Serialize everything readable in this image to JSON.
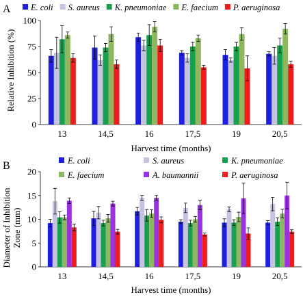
{
  "chart_data": [
    {
      "type": "bar",
      "panel_label": "A",
      "categories": [
        "13",
        "14,5",
        "16",
        "17,5",
        "19",
        "20,5"
      ],
      "xlabel": "Harvest time (months)",
      "ylabel": "Relative Inhibition (%)",
      "ylim": [
        0,
        100
      ],
      "yticks": [
        "0",
        "25",
        "50",
        "75",
        "100"
      ],
      "legend_position": "top",
      "series": [
        {
          "name": "E. coli",
          "color": "#1f1fe0",
          "values": [
            66,
            74,
            84,
            69,
            67,
            68
          ],
          "errors": [
            6,
            11,
            4,
            2,
            5,
            2
          ]
        },
        {
          "name": "S. aureus",
          "color": "#c5c3e0",
          "values": [
            69,
            62,
            76,
            64,
            62,
            66
          ],
          "errors": [
            15,
            5,
            5,
            4,
            2,
            8
          ]
        },
        {
          "name": "K. pneumoniae",
          "color": "#18a050",
          "values": [
            82,
            74,
            86,
            75,
            75,
            76
          ],
          "errors": [
            13,
            4,
            10,
            4,
            4,
            7
          ]
        },
        {
          "name": "E. faecium",
          "color": "#8db860",
          "values": [
            86,
            87,
            94,
            83,
            87,
            92
          ],
          "errors": [
            3,
            7,
            5,
            3,
            6,
            5
          ]
        },
        {
          "name": "P. aeruginosa",
          "color": "#ee1c1c",
          "values": [
            64,
            58,
            76,
            55,
            54,
            58
          ],
          "errors": [
            4,
            4,
            6,
            2,
            12,
            3
          ]
        }
      ]
    },
    {
      "type": "bar",
      "panel_label": "B",
      "categories": [
        "13",
        "14,5",
        "16",
        "17,5",
        "19",
        "20,5"
      ],
      "xlabel": "Harvest time (months)",
      "ylabel_line1": "Diameter of Inhibition",
      "ylabel_line2": "Zone (mm)",
      "ylim": [
        0,
        20
      ],
      "yticks": [
        "0",
        "5",
        "10",
        "15",
        "20"
      ],
      "legend_position": "top",
      "series": [
        {
          "name": "E. coli",
          "color": "#1f1fe0",
          "values": [
            9.2,
            10.2,
            11.7,
            9.5,
            9.3,
            9.3
          ],
          "errors": [
            0.8,
            1.5,
            0.8,
            0.4,
            0.8,
            0.4
          ]
        },
        {
          "name": "S. aureus",
          "color": "#c5c3e0",
          "values": [
            13.8,
            11.4,
            14.5,
            12.4,
            12.1,
            13.2
          ],
          "errors": [
            2.7,
            1.3,
            0.5,
            1.0,
            0.5,
            1.4
          ]
        },
        {
          "name": "K. pneumoniae",
          "color": "#18a050",
          "values": [
            10.4,
            9.2,
            10.8,
            9.2,
            9.3,
            9.5
          ],
          "errors": [
            1.2,
            0.6,
            1.2,
            0.6,
            0.6,
            0.8
          ]
        },
        {
          "name": "E. faecium",
          "color": "#8db860",
          "values": [
            10.4,
            10.2,
            11.2,
            10.0,
            10.5,
            11.2
          ],
          "errors": [
            0.5,
            0.8,
            0.8,
            0.6,
            1.0,
            0.9
          ]
        },
        {
          "name": "A. baumannii",
          "color": "#9a32e0",
          "values": [
            13.9,
            13.3,
            14.5,
            13.0,
            14.4,
            15.0
          ],
          "errors": [
            0.6,
            0.5,
            0.5,
            1.0,
            3.2,
            2.8
          ]
        },
        {
          "name": "P. aeruginosa",
          "color": "#ee1c1c",
          "values": [
            8.3,
            7.4,
            9.9,
            6.8,
            7.0,
            7.4
          ],
          "errors": [
            0.7,
            0.5,
            0.6,
            0.3,
            1.2,
            0.4
          ]
        }
      ]
    }
  ]
}
